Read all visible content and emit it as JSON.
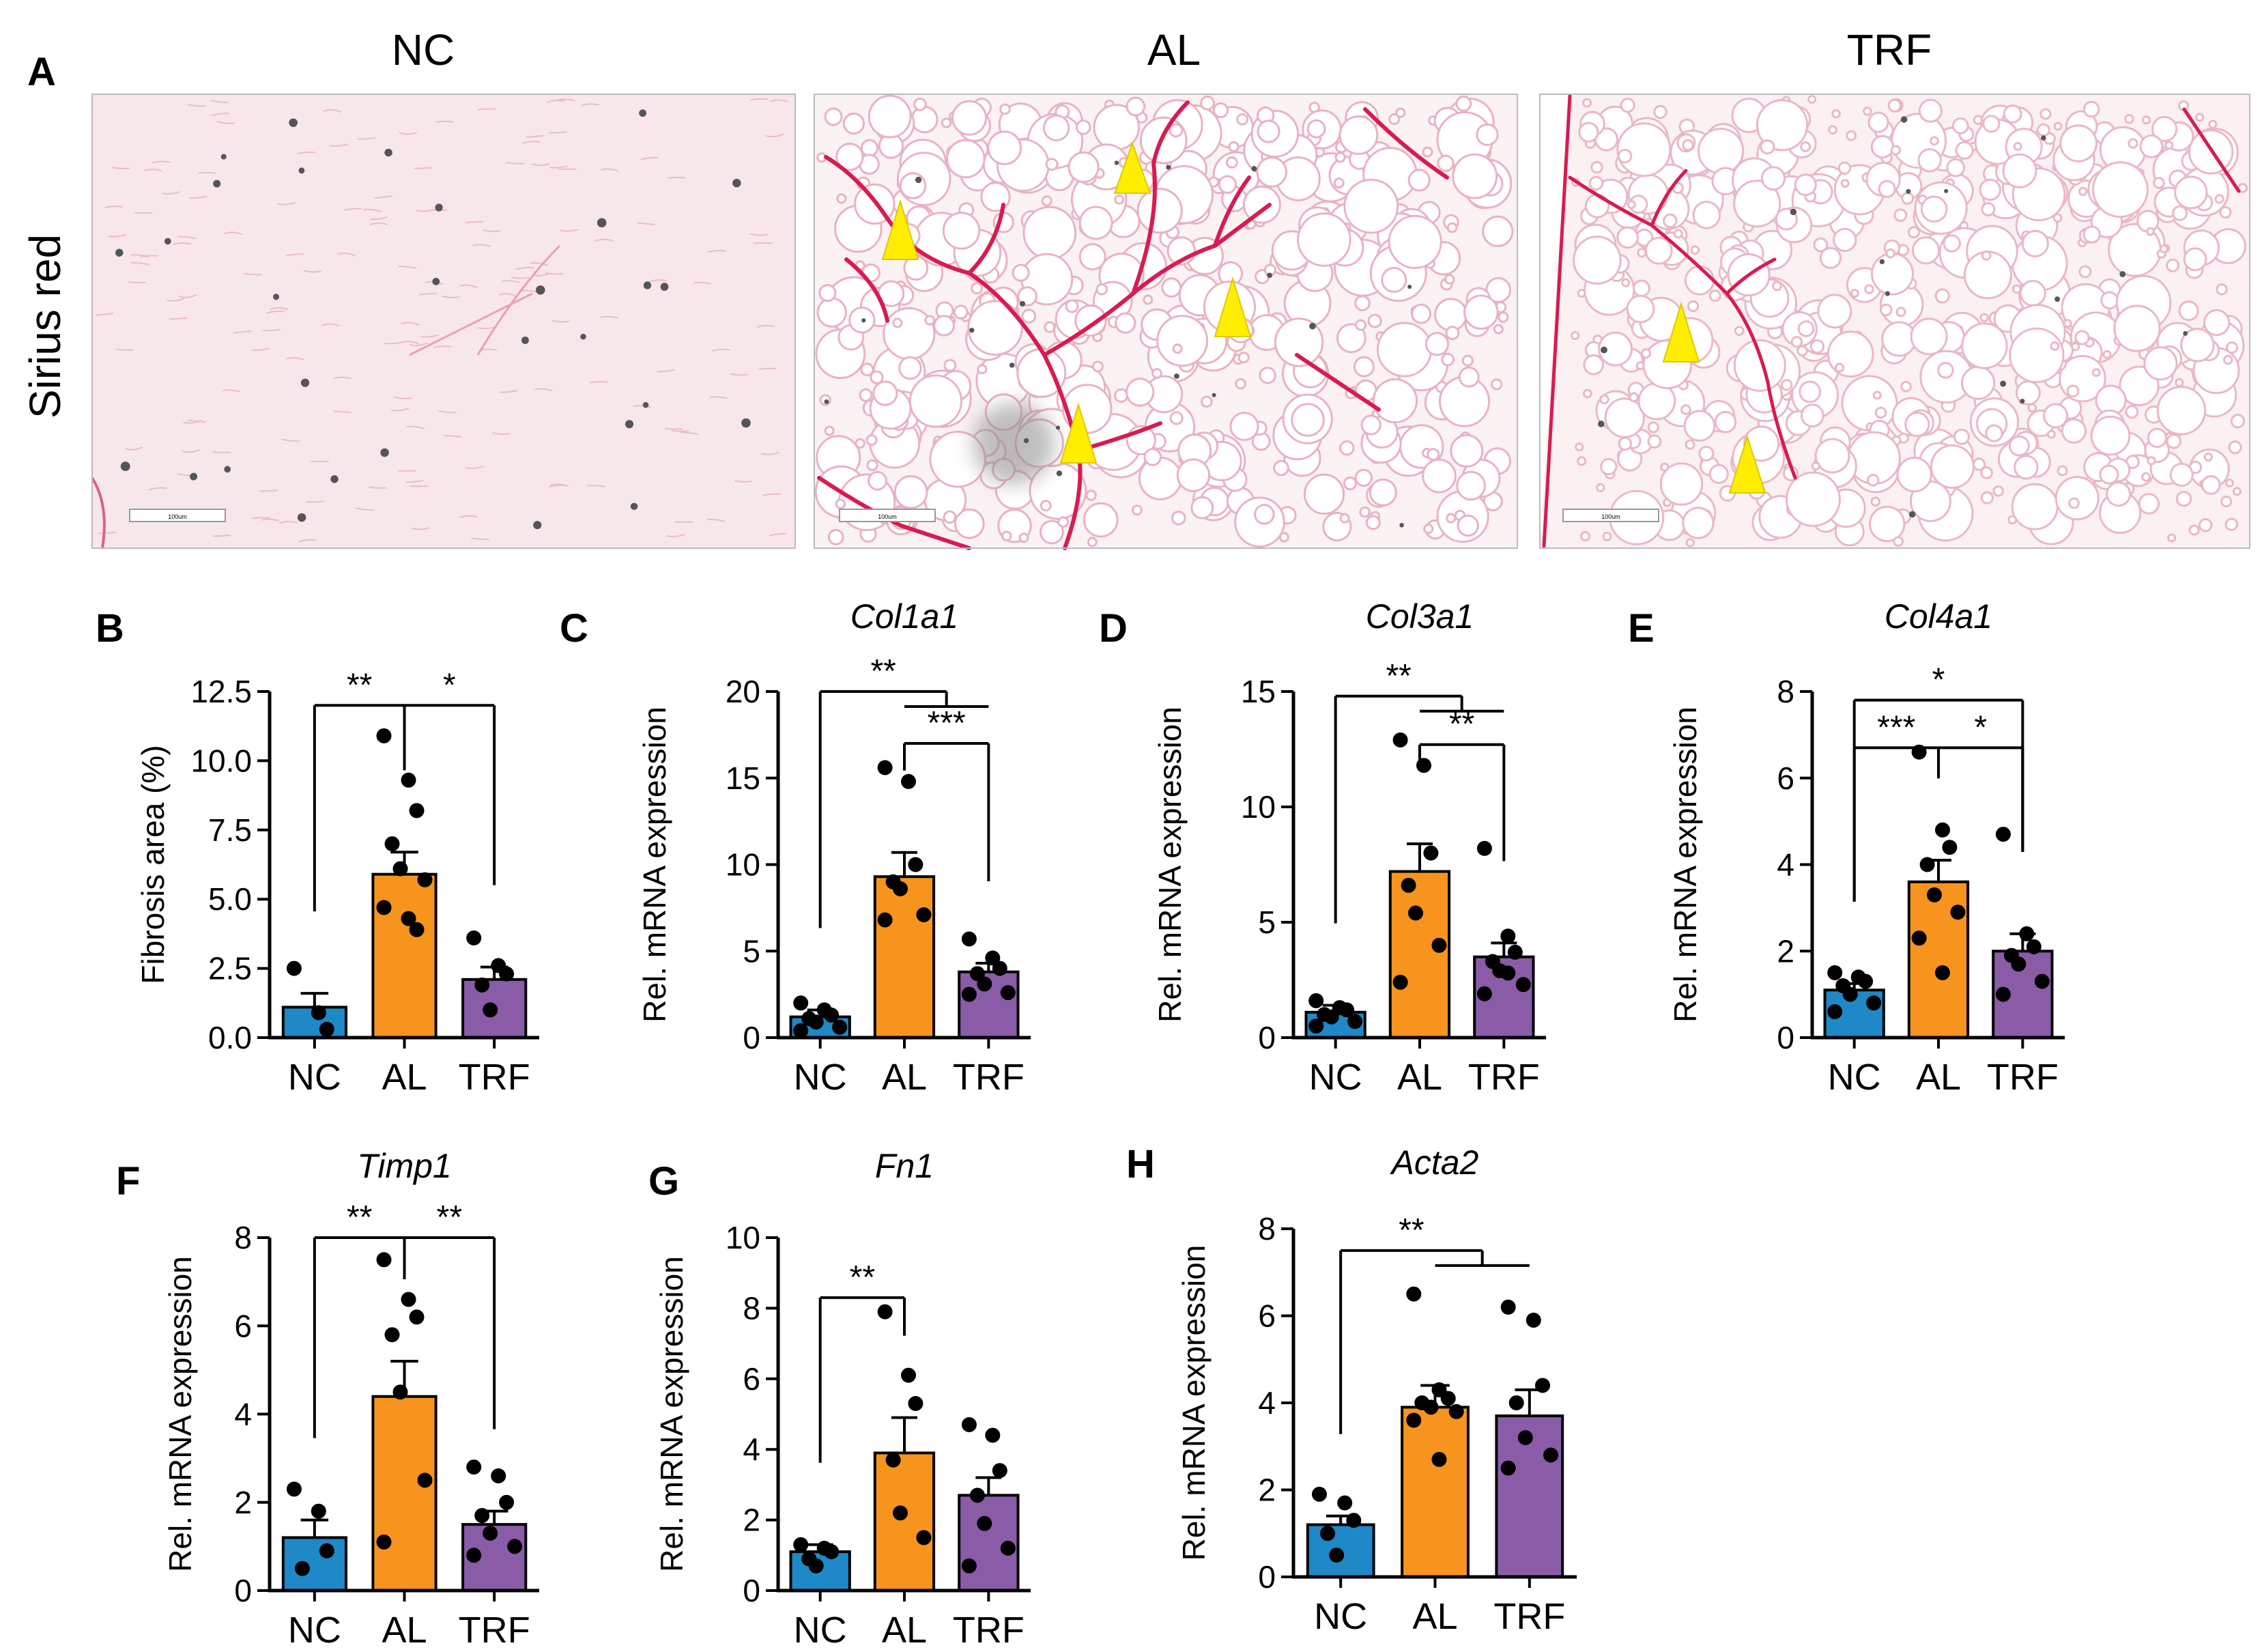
{
  "panel_a": {
    "label": "A",
    "stain_label": "Sirius red",
    "groups": [
      "NC",
      "AL",
      "TRF"
    ],
    "scale_bar_text": "100um",
    "colors": {
      "background": "#f7e6ea",
      "fiber": "#d81b50",
      "arrow": "#ffee00"
    }
  },
  "chart_data": [
    {
      "label": "B",
      "type": "bar",
      "title": "",
      "ylabel": "Fibrosis area (%)",
      "categories": [
        "NC",
        "AL",
        "TRF"
      ],
      "values": [
        1.1,
        5.9,
        2.1
      ],
      "errors": [
        0.5,
        0.8,
        0.45
      ],
      "points": [
        [
          2.5,
          0.9,
          0.3
        ],
        [
          10.9,
          9.3,
          8.2,
          7.0,
          6.1,
          5.7,
          4.7,
          4.3,
          3.9
        ],
        [
          3.6,
          2.6,
          2.3,
          1.9,
          1.0
        ]
      ],
      "ylim": [
        0,
        12.5
      ],
      "yticks": [
        0,
        2.5,
        5.0,
        7.5,
        10.0,
        12.5
      ],
      "ytick_labels": [
        "0.0",
        "2.5",
        "5.0",
        "7.5",
        "10.0",
        "12.5"
      ],
      "colors": [
        "#1f88c6",
        "#f7941d",
        "#8a5ca8"
      ],
      "significance": [
        {
          "from": 0,
          "to": [
            1
          ],
          "label": "**",
          "y": 12.0
        },
        {
          "from": 1,
          "to": [
            2
          ],
          "label": "*",
          "y": 12.0
        }
      ]
    },
    {
      "label": "C",
      "type": "bar",
      "title": "Col1a1",
      "ylabel": "Rel. mRNA expression",
      "categories": [
        "NC",
        "AL",
        "TRF"
      ],
      "values": [
        1.2,
        9.3,
        3.8
      ],
      "errors": [
        0.4,
        1.4,
        0.5
      ],
      "points": [
        [
          2.0,
          1.6,
          1.3,
          1.1,
          0.9,
          0.6,
          0.4
        ],
        [
          15.6,
          14.8,
          10.0,
          9.0,
          8.6,
          7.1,
          6.8
        ],
        [
          5.7,
          4.6,
          4.0,
          3.7,
          3.1,
          2.6,
          2.5
        ]
      ],
      "ylim": [
        0,
        20
      ],
      "yticks": [
        0,
        5,
        10,
        15,
        20
      ],
      "ytick_labels": [
        "0",
        "5",
        "10",
        "15",
        "20"
      ],
      "colors": [
        "#1f88c6",
        "#f7941d",
        "#8a5ca8"
      ],
      "significance": [
        {
          "from": 0,
          "to": [
            1,
            2
          ],
          "label": "**",
          "y": 20.0
        },
        {
          "from": 1,
          "to": [
            2
          ],
          "label": "***",
          "y": 17.0
        }
      ]
    },
    {
      "label": "D",
      "type": "bar",
      "title": "Col3a1",
      "ylabel": "Rel. mRNA expression",
      "categories": [
        "NC",
        "AL",
        "TRF"
      ],
      "values": [
        1.1,
        7.2,
        3.5
      ],
      "errors": [
        0.3,
        1.2,
        0.6
      ],
      "points": [
        [
          1.6,
          1.3,
          1.2,
          1.0,
          0.9,
          0.7,
          0.5
        ],
        [
          12.9,
          11.8,
          8.0,
          6.6,
          5.4,
          4.0,
          2.4
        ],
        [
          8.2,
          4.4,
          3.7,
          3.3,
          2.9,
          2.3,
          1.9,
          2.8
        ]
      ],
      "ylim": [
        0,
        15
      ],
      "yticks": [
        0,
        5,
        10,
        15
      ],
      "ytick_labels": [
        "0",
        "5",
        "10",
        "15"
      ],
      "colors": [
        "#1f88c6",
        "#f7941d",
        "#8a5ca8"
      ],
      "significance": [
        {
          "from": 0,
          "to": [
            1,
            2
          ],
          "label": "**",
          "y": 14.8
        },
        {
          "from": 1,
          "to": [
            2
          ],
          "label": "**",
          "y": 12.7
        }
      ]
    },
    {
      "label": "E",
      "type": "bar",
      "title": "Col4a1",
      "ylabel": "Rel. mRNA expression",
      "categories": [
        "NC",
        "AL",
        "TRF"
      ],
      "values": [
        1.1,
        3.6,
        2.0
      ],
      "errors": [
        0.15,
        0.5,
        0.4
      ],
      "points": [
        [
          1.5,
          1.4,
          1.3,
          1.2,
          1.0,
          0.8,
          0.6
        ],
        [
          6.6,
          4.8,
          4.4,
          4.0,
          3.3,
          2.9,
          2.3,
          1.5
        ],
        [
          4.7,
          2.4,
          2.1,
          1.9,
          1.7,
          1.3,
          1.0
        ]
      ],
      "ylim": [
        0,
        8
      ],
      "yticks": [
        0,
        2,
        4,
        6,
        8
      ],
      "ytick_labels": [
        "0",
        "2",
        "4",
        "6",
        "8"
      ],
      "colors": [
        "#1f88c6",
        "#f7941d",
        "#8a5ca8"
      ],
      "significance": [
        {
          "from": 0,
          "to": [
            2
          ],
          "label": "*",
          "y": 7.8
        },
        {
          "from": 0,
          "to": [
            1
          ],
          "label": "***",
          "y": 6.7
        },
        {
          "from": 1,
          "to": [
            2
          ],
          "label": "*",
          "y": 6.7
        }
      ]
    },
    {
      "label": "F",
      "type": "bar",
      "title": "Timp1",
      "ylabel": "Rel. mRNA expression",
      "categories": [
        "NC",
        "AL",
        "TRF"
      ],
      "values": [
        1.2,
        4.4,
        1.5
      ],
      "errors": [
        0.4,
        0.8,
        0.3
      ],
      "points": [
        [
          2.3,
          1.8,
          0.9,
          0.5
        ],
        [
          7.5,
          6.6,
          6.2,
          5.8,
          4.5,
          2.5,
          1.1
        ],
        [
          2.8,
          2.6,
          2.0,
          1.7,
          1.3,
          1.0,
          0.8
        ]
      ],
      "ylim": [
        0,
        8
      ],
      "yticks": [
        0,
        2,
        4,
        6,
        8
      ],
      "ytick_labels": [
        "0",
        "2",
        "4",
        "6",
        "8"
      ],
      "colors": [
        "#1f88c6",
        "#f7941d",
        "#8a5ca8"
      ],
      "significance": [
        {
          "from": 0,
          "to": [
            1
          ],
          "label": "**",
          "y": 8.0
        },
        {
          "from": 1,
          "to": [
            2
          ],
          "label": "**",
          "y": 8.0
        }
      ]
    },
    {
      "label": "G",
      "type": "bar",
      "title": "Fn1",
      "ylabel": "Rel. mRNA expression",
      "categories": [
        "NC",
        "AL",
        "TRF"
      ],
      "values": [
        1.1,
        3.9,
        2.7
      ],
      "errors": [
        0.2,
        1.0,
        0.5
      ],
      "points": [
        [
          1.3,
          1.2,
          1.1,
          0.9,
          0.7
        ],
        [
          7.9,
          6.1,
          5.3,
          3.7,
          2.2,
          1.5
        ],
        [
          4.7,
          4.4,
          3.4,
          2.7,
          1.9,
          1.2,
          0.7
        ]
      ],
      "ylim": [
        0,
        10
      ],
      "yticks": [
        0,
        2,
        4,
        6,
        8,
        10
      ],
      "ytick_labels": [
        "0",
        "2",
        "4",
        "6",
        "8",
        "10"
      ],
      "colors": [
        "#1f88c6",
        "#f7941d",
        "#8a5ca8"
      ],
      "significance": [
        {
          "from": 0,
          "to": [
            1
          ],
          "label": "**",
          "y": 8.3
        }
      ]
    },
    {
      "label": "H",
      "type": "bar",
      "title": "Acta2",
      "ylabel": "Rel. mRNA expression",
      "categories": [
        "NC",
        "AL",
        "TRF"
      ],
      "values": [
        1.2,
        3.9,
        3.7
      ],
      "errors": [
        0.2,
        0.5,
        0.6
      ],
      "points": [
        [
          1.9,
          1.7,
          1.3,
          1.0,
          0.5
        ],
        [
          6.5,
          4.3,
          4.1,
          4.0,
          3.9,
          3.8,
          3.6,
          2.7
        ],
        [
          6.2,
          5.9,
          4.4,
          4.0,
          3.2,
          2.8,
          2.5
        ]
      ],
      "ylim": [
        0,
        8
      ],
      "yticks": [
        0,
        2,
        4,
        6,
        8
      ],
      "ytick_labels": [
        "0",
        "2",
        "4",
        "6",
        "8"
      ],
      "colors": [
        "#1f88c6",
        "#f7941d",
        "#8a5ca8"
      ],
      "significance": [
        {
          "from": 0,
          "to": [
            1,
            2
          ],
          "label": "**",
          "y": 7.5
        }
      ]
    }
  ]
}
